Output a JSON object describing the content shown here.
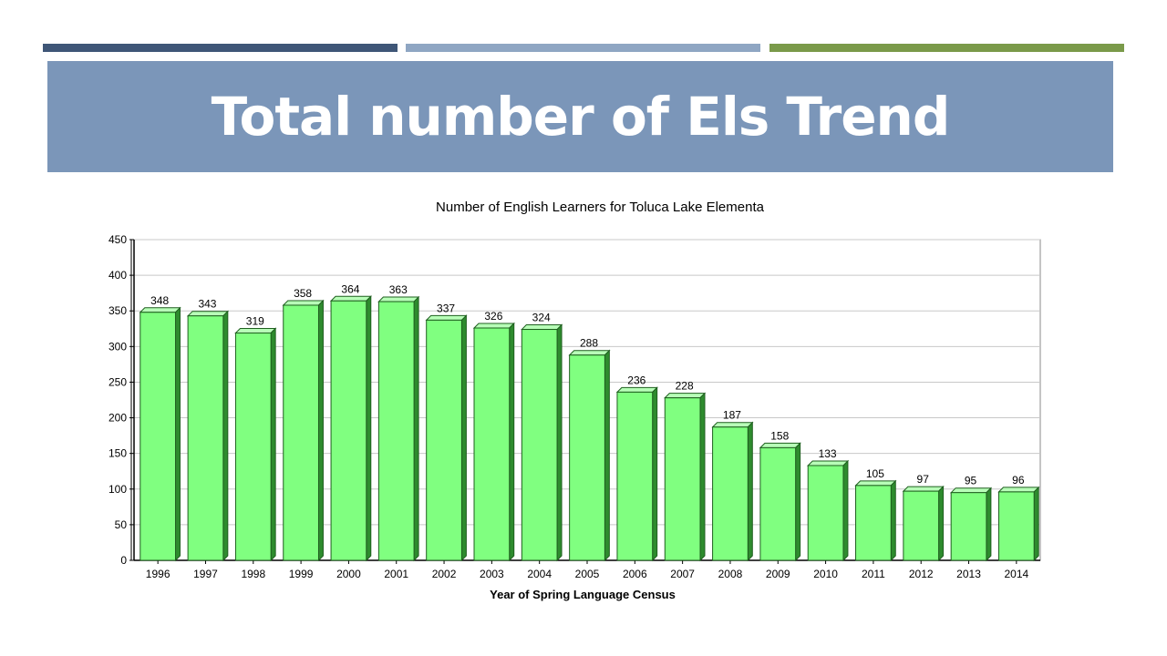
{
  "slide": {
    "title": "Total number of Els Trend",
    "title_band_color": "#7b96b9",
    "accent_colors": [
      "#3f5677",
      "#8fa6c3",
      "#7a9a4a"
    ]
  },
  "chart_data": {
    "type": "bar",
    "title": "Number of English Learners for Toluca Lake Elementa",
    "xlabel": "Year of Spring Language Census",
    "ylabel": "",
    "categories": [
      "1996",
      "1997",
      "1998",
      "1999",
      "2000",
      "2001",
      "2002",
      "2003",
      "2004",
      "2005",
      "2006",
      "2007",
      "2008",
      "2009",
      "2010",
      "2011",
      "2012",
      "2013",
      "2014"
    ],
    "values": [
      348,
      343,
      319,
      358,
      364,
      363,
      337,
      326,
      324,
      288,
      236,
      228,
      187,
      158,
      133,
      105,
      97,
      95,
      96
    ],
    "ylim": [
      0,
      450
    ],
    "yticks": [
      0,
      50,
      100,
      150,
      200,
      250,
      300,
      350,
      400,
      450
    ],
    "grid": true,
    "bar_color": "#80ff80",
    "data_labels": true
  }
}
